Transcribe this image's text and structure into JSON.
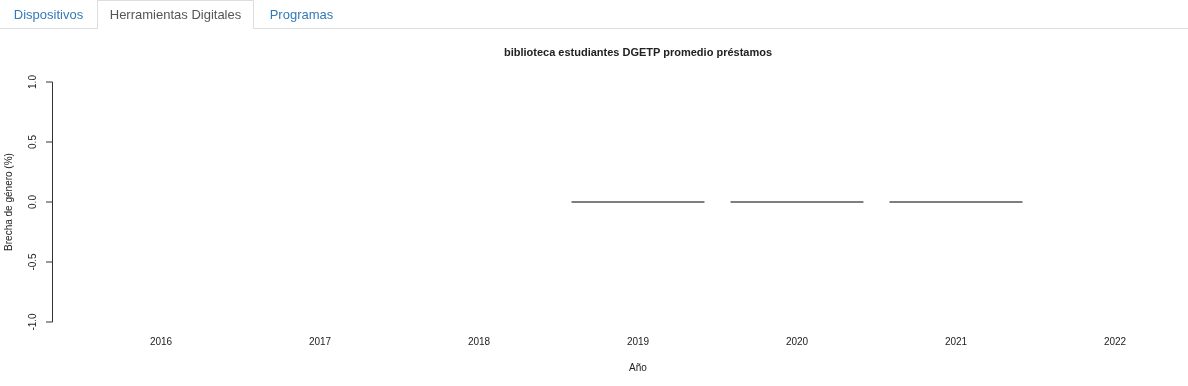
{
  "chart_data": {
    "type": "bar",
    "title": "biblioteca estudiantes DGETP promedio préstamos",
    "xlabel": "Año",
    "ylabel": "Brecha de género (%)",
    "categories": [
      "2016",
      "2017",
      "2018",
      "2019",
      "2020",
      "2021",
      "2022"
    ],
    "values": [
      null,
      null,
      null,
      0,
      0,
      0,
      null
    ],
    "color": "#555555",
    "ylim": [
      -1,
      1
    ],
    "yticks": [
      {
        "value": -1,
        "label": "-1.0"
      },
      {
        "value": -0.5,
        "label": "-0.5"
      },
      {
        "value": 0,
        "label": "0.0"
      },
      {
        "value": 0.5,
        "label": "0.5"
      },
      {
        "value": 1,
        "label": "1.0"
      }
    ],
    "annotations": [
      "Dispositivos",
      "Herramientas Digitales",
      "Programas"
    ]
  }
}
